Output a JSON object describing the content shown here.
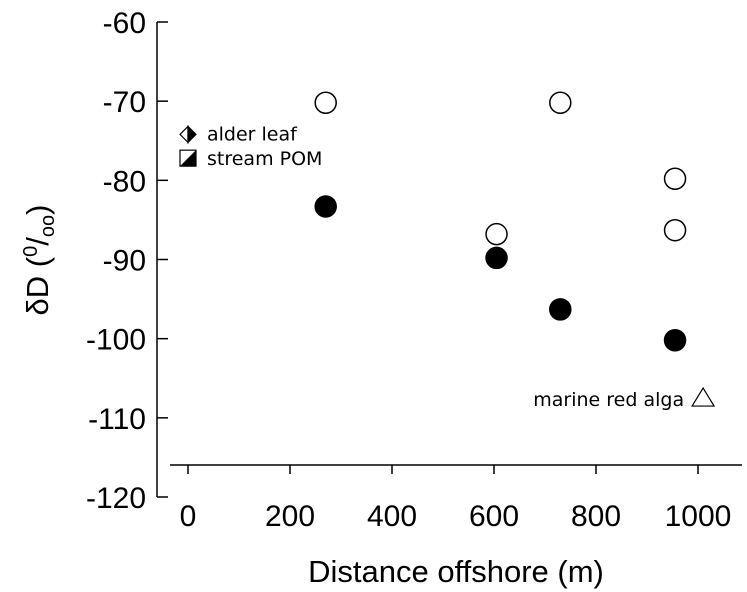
{
  "chart_data": {
    "type": "scatter",
    "xlabel": "Distance offshore (m)",
    "ylabel": {
      "prefix": "δD (",
      "sup": "0",
      "slash": "/",
      "sub": "oo",
      "suffix": ")"
    },
    "xlim": [
      0,
      1000
    ],
    "ylim": [
      -120,
      -60
    ],
    "xticks": [
      0,
      200,
      400,
      600,
      800,
      1000
    ],
    "yticks": [
      -60,
      -70,
      -80,
      -90,
      -100,
      -110,
      -120
    ],
    "grid": false,
    "series": [
      {
        "marker": "open-circle",
        "points": [
          {
            "x": 270,
            "y": -70.2
          },
          {
            "x": 605,
            "y": -86.8
          },
          {
            "x": 730,
            "y": -70.2
          },
          {
            "x": 955,
            "y": -79.8
          },
          {
            "x": 955,
            "y": -86.3
          }
        ]
      },
      {
        "marker": "filled-circle",
        "points": [
          {
            "x": 270,
            "y": -83.3
          },
          {
            "x": 605,
            "y": -89.8
          },
          {
            "x": 730,
            "y": -96.3
          },
          {
            "x": 955,
            "y": -100.2
          }
        ]
      }
    ],
    "reference_points": [
      {
        "label": "alder leaf",
        "marker": "half-filled-diamond",
        "x": 0,
        "y": -74.2
      },
      {
        "label": "stream POM",
        "marker": "half-filled-square",
        "x": 0,
        "y": -77.2
      },
      {
        "label": "marine red alga",
        "marker": "open-triangle",
        "x": 1010,
        "y": -107.5
      }
    ]
  }
}
